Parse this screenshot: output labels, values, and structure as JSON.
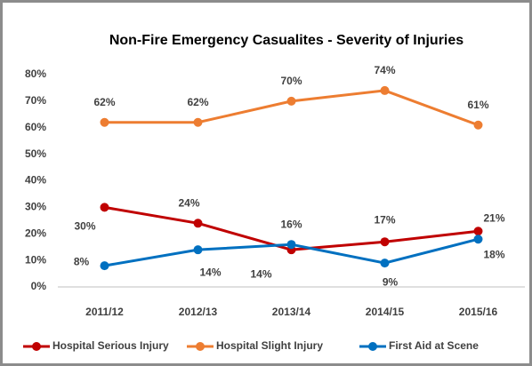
{
  "chart_data": {
    "type": "line",
    "title": "Non-Fire Emergency Casualites - Severity of Injuries",
    "categories": [
      "2011/12",
      "2012/13",
      "2013/14",
      "2014/15",
      "2015/16"
    ],
    "series": [
      {
        "name": "Hospital Serious Injury",
        "color": "#c00000",
        "values": [
          30,
          24,
          14,
          17,
          21
        ],
        "value_labels": [
          "30%",
          "24%",
          "14%",
          "17%",
          "21%"
        ]
      },
      {
        "name": "Hospital Slight Injury",
        "color": "#ed7d31",
        "values": [
          62,
          62,
          70,
          74,
          61
        ],
        "value_labels": [
          "62%",
          "62%",
          "70%",
          "74%",
          "61%"
        ]
      },
      {
        "name": "First Aid at Scene",
        "color": "#0070c0",
        "values": [
          8,
          14,
          16,
          9,
          18
        ],
        "value_labels": [
          "8%",
          "14%",
          "16%",
          "9%",
          "18%"
        ]
      }
    ],
    "ylim": [
      0,
      80
    ],
    "yticks": [
      {
        "value": 0,
        "label": "0%"
      },
      {
        "value": 10,
        "label": "10%"
      },
      {
        "value": 20,
        "label": "20%"
      },
      {
        "value": 30,
        "label": "30%"
      },
      {
        "value": 40,
        "label": "40%"
      },
      {
        "value": 50,
        "label": "50%"
      },
      {
        "value": 60,
        "label": "60%"
      },
      {
        "value": 70,
        "label": "70%"
      },
      {
        "value": 80,
        "label": "80%"
      }
    ],
    "legend": "bottom"
  }
}
